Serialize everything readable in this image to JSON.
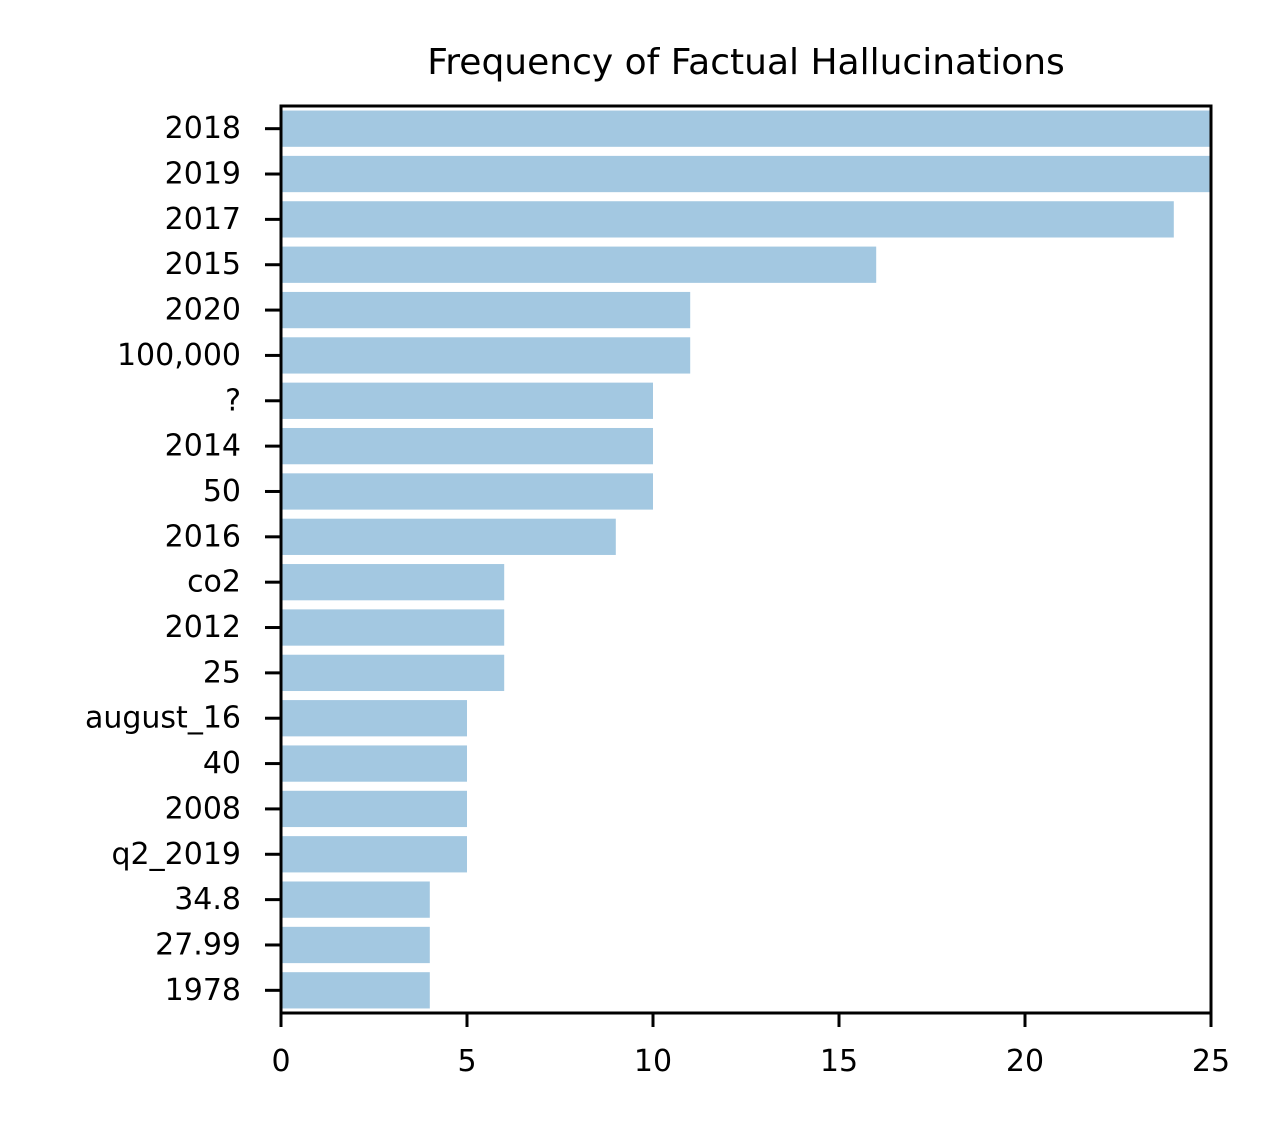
{
  "chart_data": {
    "type": "bar",
    "orientation": "horizontal",
    "title": "Frequency of Factual Hallucinations",
    "xlabel": "",
    "ylabel": "",
    "categories": [
      "2018",
      "2019",
      "2017",
      "2015",
      "2020",
      "100,000",
      "?",
      "2014",
      "50",
      "2016",
      "co2",
      "2012",
      "25",
      "august_16",
      "40",
      "2008",
      "q2_2019",
      "34.8",
      "27.99",
      "1978"
    ],
    "values": [
      25,
      25,
      24,
      16,
      11,
      11,
      10,
      10,
      10,
      9,
      6,
      6,
      6,
      5,
      5,
      5,
      5,
      4,
      4,
      4
    ],
    "xlim": [
      0,
      25
    ],
    "xticks": [
      0,
      5,
      10,
      15,
      20,
      25
    ],
    "grid": false,
    "legend": "none",
    "bar_color": "#a3c8e1"
  }
}
